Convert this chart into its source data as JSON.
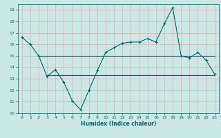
{
  "xlabel": "Humidex (Indice chaleur)",
  "xlim": [
    -0.5,
    23.5
  ],
  "ylim": [
    10,
    19.5
  ],
  "yticks": [
    10,
    11,
    12,
    13,
    14,
    15,
    16,
    17,
    18,
    19
  ],
  "xticks": [
    0,
    1,
    2,
    3,
    4,
    5,
    6,
    7,
    8,
    9,
    10,
    11,
    12,
    13,
    14,
    15,
    16,
    17,
    18,
    19,
    20,
    21,
    22,
    23
  ],
  "bg_color": "#cce8e4",
  "grid_color": "#dbb0b0",
  "line_color": "#006666",
  "line1_x": [
    0,
    1,
    2,
    3,
    4,
    5,
    6,
    7,
    8,
    9,
    10,
    11,
    12,
    13,
    14,
    15,
    16,
    17,
    18,
    19,
    20,
    21,
    22,
    23
  ],
  "line1_y": [
    16.6,
    16.0,
    15.0,
    13.2,
    13.8,
    12.7,
    11.1,
    10.3,
    12.0,
    13.7,
    15.3,
    15.7,
    16.1,
    16.2,
    16.2,
    16.5,
    16.2,
    17.8,
    19.2,
    15.0,
    14.8,
    15.3,
    14.6,
    13.4
  ],
  "line2_x": [
    2,
    23
  ],
  "line2_y": [
    15.0,
    15.0
  ],
  "line3_x": [
    3,
    23
  ],
  "line3_y": [
    13.3,
    13.3
  ]
}
